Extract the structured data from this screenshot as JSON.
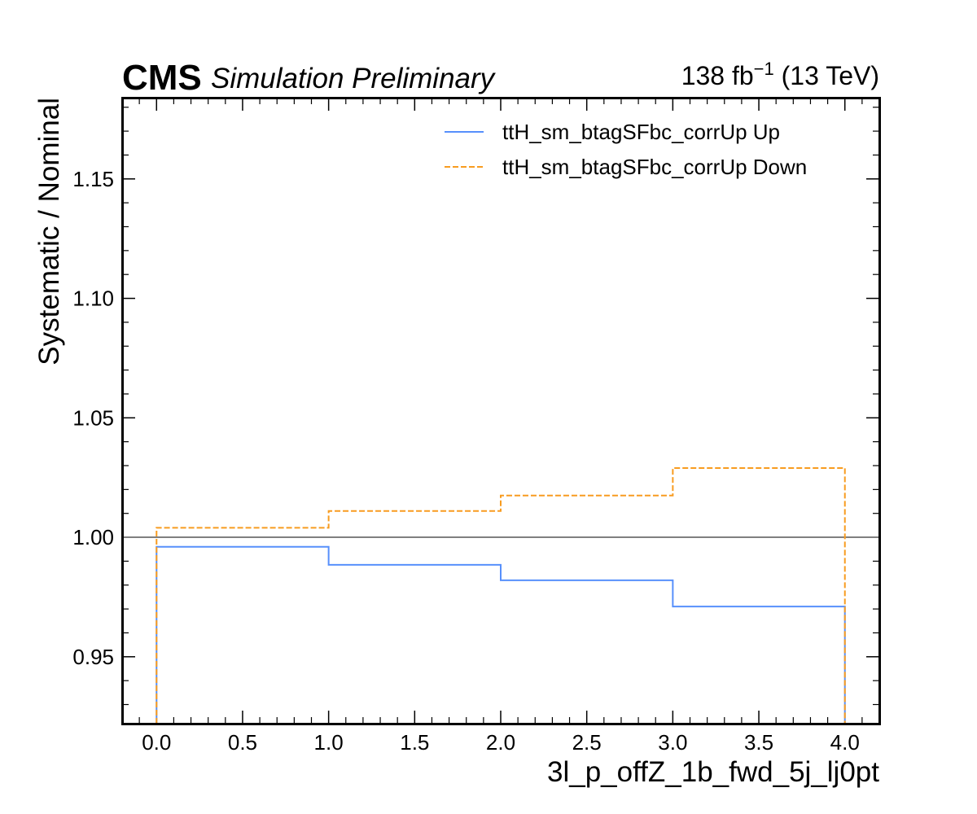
{
  "header": {
    "experiment": "CMS",
    "status": "Simulation Preliminary",
    "lumi": "138 fb",
    "lumi_exp": "−1",
    "energy": " (13 TeV)"
  },
  "chart_data": {
    "type": "step",
    "xlabel": "3l_p_offZ_1b_fwd_5j_lj0pt",
    "ylabel": "Systematic / Nominal",
    "xlim": [
      -0.2,
      4.2
    ],
    "ylim": [
      0.922,
      1.184
    ],
    "x_ticks": [
      0.0,
      0.5,
      1.0,
      1.5,
      2.0,
      2.5,
      3.0,
      3.5,
      4.0
    ],
    "x_tick_labels": [
      "0.0",
      "0.5",
      "1.0",
      "1.5",
      "2.0",
      "2.5",
      "3.0",
      "3.5",
      "4.0"
    ],
    "y_ticks": [
      0.95,
      1.0,
      1.05,
      1.1,
      1.15
    ],
    "y_tick_labels": [
      "0.95",
      "1.00",
      "1.05",
      "1.10",
      "1.15"
    ],
    "reference_line": 1.0,
    "bin_edges": [
      0,
      1,
      2,
      3,
      4
    ],
    "series": [
      {
        "name": "ttH_sm_btagSFbc_corrUp Up",
        "color": "#5790fc",
        "style": "solid",
        "values": [
          0.996,
          0.9885,
          0.982,
          0.971
        ]
      },
      {
        "name": "ttH_sm_btagSFbc_corrUp Down",
        "color": "#f89c20",
        "style": "dashed",
        "values": [
          1.004,
          1.011,
          1.0175,
          1.029
        ]
      }
    ],
    "legend_position": "top-right",
    "grid": false
  }
}
